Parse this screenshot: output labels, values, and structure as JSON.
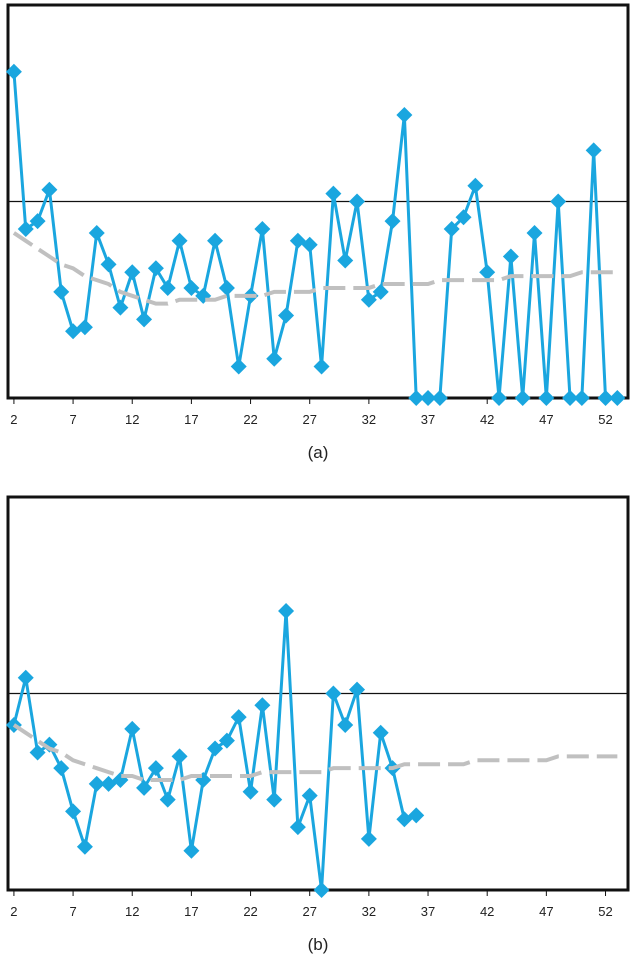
{
  "chart_data": [
    {
      "type": "line",
      "caption": "(a)",
      "x": [
        2,
        3,
        4,
        5,
        6,
        7,
        8,
        9,
        10,
        11,
        12,
        13,
        14,
        15,
        16,
        17,
        18,
        19,
        20,
        21,
        22,
        23,
        24,
        25,
        26,
        27,
        28,
        29,
        30,
        31,
        32,
        33,
        34,
        35,
        36,
        37,
        38,
        39,
        40,
        41,
        42,
        43,
        44,
        45,
        46,
        47,
        48,
        49,
        50,
        51,
        52,
        53
      ],
      "xlim": [
        1.5,
        53.9
      ],
      "xticks": [
        2,
        7,
        12,
        17,
        22,
        27,
        32,
        37,
        42,
        47,
        52
      ],
      "ylim": [
        0,
        100
      ],
      "reference": 50,
      "series": [
        {
          "color": "#1aa6df",
          "style": "solid",
          "markers": true,
          "values": [
            83,
            43,
            45,
            53,
            27,
            17,
            18,
            42,
            34,
            23,
            32,
            20,
            33,
            28,
            40,
            28,
            26,
            40,
            28,
            8,
            26,
            43,
            10,
            21,
            40,
            39,
            8,
            52,
            35,
            50,
            25,
            27,
            45,
            72,
            0,
            0,
            0,
            43,
            46,
            54,
            32,
            0,
            36,
            0,
            42,
            0,
            50,
            0,
            0,
            63,
            0,
            0
          ]
        },
        {
          "color": "#c0c0c0",
          "style": "dashed",
          "markers": false,
          "values": [
            42,
            40,
            38,
            36,
            34,
            33,
            31,
            30,
            29,
            27,
            26,
            25,
            24,
            24,
            25,
            25,
            25,
            25,
            26,
            26,
            26,
            26,
            27,
            27,
            27,
            27,
            28,
            28,
            28,
            28,
            28,
            29,
            29,
            29,
            29,
            29,
            30,
            30,
            30,
            30,
            30,
            30,
            31,
            31,
            31,
            31,
            31,
            31,
            32,
            32,
            32,
            32
          ]
        }
      ]
    },
    {
      "type": "line",
      "caption": "(b)",
      "x": [
        2,
        3,
        4,
        5,
        6,
        7,
        8,
        9,
        10,
        11,
        12,
        13,
        14,
        15,
        16,
        17,
        18,
        19,
        20,
        21,
        22,
        23,
        24,
        25,
        26,
        27,
        28,
        29,
        30,
        31,
        32,
        33,
        34,
        35,
        36,
        37,
        38,
        39,
        40,
        41,
        42,
        43,
        44,
        45,
        46,
        47,
        48,
        49,
        50,
        51,
        52,
        53
      ],
      "xlim": [
        1.5,
        53.9
      ],
      "xticks": [
        2,
        7,
        12,
        17,
        22,
        27,
        32,
        37,
        42,
        47,
        52
      ],
      "ylim": [
        0,
        100
      ],
      "reference": 50,
      "series": [
        {
          "color": "#1aa6df",
          "style": "solid",
          "markers": true,
          "values": [
            42,
            54,
            35,
            37,
            31,
            20,
            11,
            27,
            27,
            28,
            41,
            26,
            31,
            23,
            34,
            10,
            28,
            36,
            38,
            44,
            25,
            47,
            23,
            71,
            16,
            24,
            0,
            50,
            42,
            51,
            13,
            40,
            31,
            18,
            19,
            null,
            null,
            null,
            null,
            null,
            null,
            null,
            null,
            null,
            null,
            null,
            null,
            null,
            null,
            null,
            null,
            null
          ]
        },
        {
          "color": "#c0c0c0",
          "style": "dashed",
          "markers": false,
          "values": [
            42,
            40,
            38,
            36,
            35,
            33,
            32,
            31,
            30,
            29,
            29,
            28,
            28,
            28,
            28,
            29,
            29,
            29,
            29,
            29,
            29,
            30,
            30,
            30,
            30,
            30,
            30,
            31,
            31,
            31,
            31,
            31,
            31,
            32,
            32,
            32,
            32,
            32,
            32,
            33,
            33,
            33,
            33,
            33,
            33,
            33,
            34,
            34,
            34,
            34,
            34,
            34
          ]
        }
      ]
    }
  ]
}
